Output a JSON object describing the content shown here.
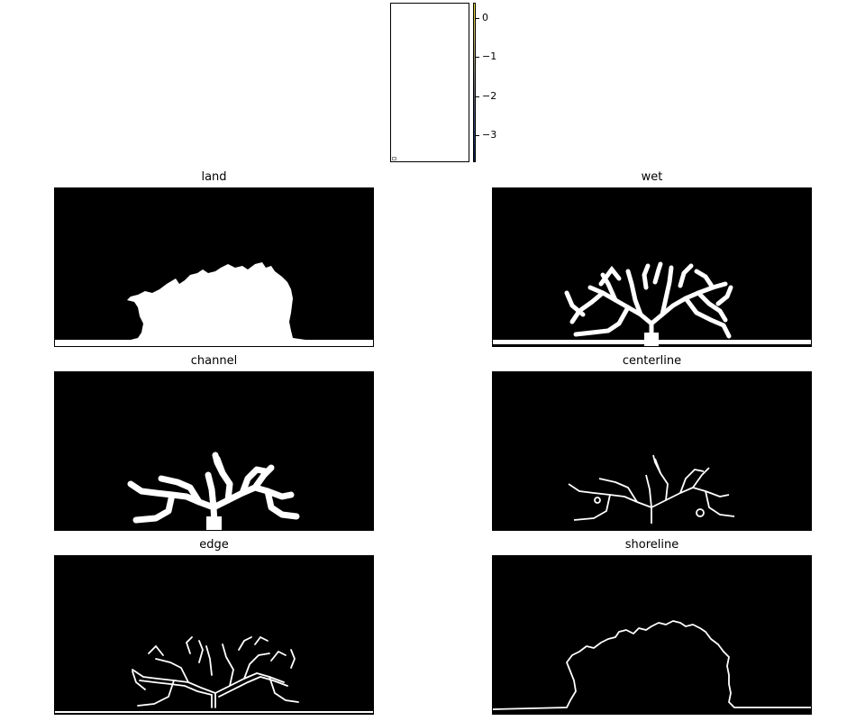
{
  "chart_data": [
    {
      "type": "heatmap",
      "name": "top-image",
      "colorbar": {
        "ticks": [
          0,
          -1,
          -2,
          -3
        ],
        "tick_labels": [
          "0",
          "−1",
          "−2",
          "−3"
        ],
        "range": [
          -3.7,
          0.4
        ],
        "colormap": "cividis"
      }
    },
    {
      "type": "heatmap",
      "title": "land",
      "colormap": "gray"
    },
    {
      "type": "heatmap",
      "title": "wet",
      "colormap": "gray"
    },
    {
      "type": "heatmap",
      "title": "channel",
      "colormap": "gray"
    },
    {
      "type": "heatmap",
      "title": "centerline",
      "colormap": "gray"
    },
    {
      "type": "heatmap",
      "title": "edge",
      "colormap": "gray"
    },
    {
      "type": "heatmap",
      "title": "shoreline",
      "colormap": "gray"
    }
  ]
}
